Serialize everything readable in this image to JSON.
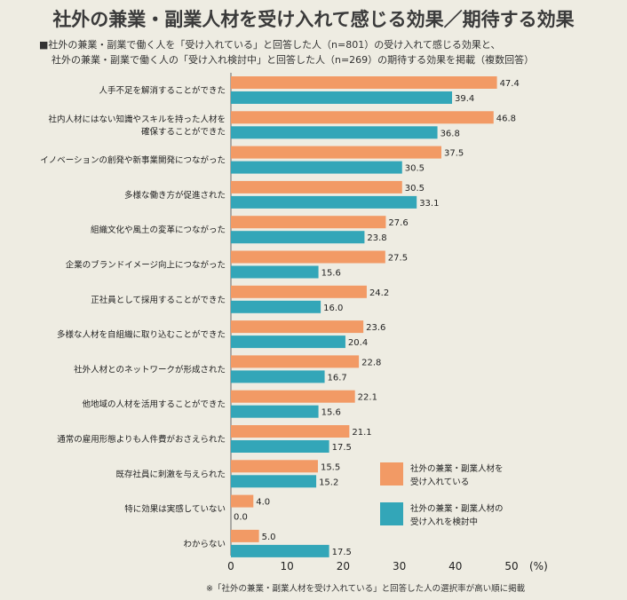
{
  "title": "社外の兼業・副業人材を受け入れて感じる効果／期待する効果",
  "note_line1": "■社外の兼業・副業で働く人を「受け入れている」と回答した人（n=801）の受け入れて感じる効果と、",
  "note_line2": "社外の兼業・副業で働く人の「受け入れ検討中」と回答した人（n=269）の期待する効果を掲載（複数回答）",
  "footnote": "※「社外の兼業・副業人材を受け入れている」と回答した人の選択率が高い順に掲載",
  "colors": {
    "series1": "#f29a65",
    "series2": "#33a6b8"
  },
  "chart_data": {
    "type": "bar",
    "orientation": "horizontal",
    "categories": [
      [
        "人手不足を解消することができた"
      ],
      [
        "社内人材にはない知識やスキルを持った人材を",
        "確保することができた"
      ],
      [
        "イノベーションの創発や新事業開発につながった"
      ],
      [
        "多様な働き方が促進された"
      ],
      [
        "組織文化や風土の変革につながった"
      ],
      [
        "企業のブランドイメージ向上につながった"
      ],
      [
        "正社員として採用することができた"
      ],
      [
        "多様な人材を自組織に取り込むことができた"
      ],
      [
        "社外人材とのネットワークが形成された"
      ],
      [
        "他地域の人材を活用することができた"
      ],
      [
        "通常の雇用形態よりも人件費がおさえられた"
      ],
      [
        "既存社員に刺激を与えられた"
      ],
      [
        "特に効果は実感していない"
      ],
      [
        "わからない"
      ]
    ],
    "series": [
      {
        "name": [
          "社外の兼業・副業人材を",
          "受け入れている"
        ],
        "values": [
          47.4,
          46.8,
          37.5,
          30.5,
          27.6,
          27.5,
          24.2,
          23.6,
          22.8,
          22.1,
          21.1,
          15.5,
          4.0,
          5.0
        ]
      },
      {
        "name": [
          "社外の兼業・副業人材の",
          "受け入れを検討中"
        ],
        "values": [
          39.4,
          36.8,
          30.5,
          33.1,
          23.8,
          15.6,
          16.0,
          20.4,
          16.7,
          15.6,
          17.5,
          15.2,
          0.0,
          17.5
        ]
      }
    ],
    "xlim": [
      0,
      50
    ],
    "xticks": [
      0,
      10,
      20,
      30,
      40,
      50
    ],
    "xunit": "(%)",
    "value_labels": true,
    "legend_position": "bottom-right"
  }
}
